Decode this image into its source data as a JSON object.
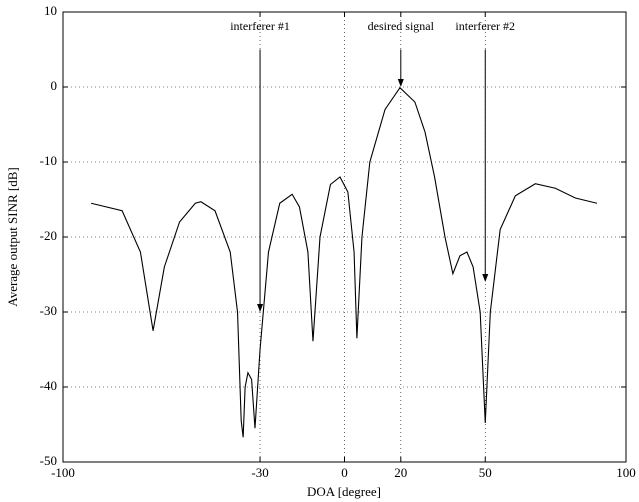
{
  "chart_data": {
    "type": "line",
    "xlabel": "DOA [degree]",
    "ylabel": "Average output SINR [dB]",
    "xlim": [
      -100,
      100
    ],
    "xticks": [
      -100,
      -30,
      0,
      20,
      50,
      100
    ],
    "ylim": [
      -50,
      10
    ],
    "yticks": [
      -50,
      -40,
      -30,
      -20,
      -10,
      0,
      10
    ],
    "grid": true,
    "x": [
      -90,
      -79,
      -72.5,
      -68,
      -64,
      -58.6,
      -53,
      -51,
      -46,
      -40.6,
      -38,
      -36.7,
      -36,
      -35.3,
      -34.3,
      -33,
      -31.8,
      -30,
      -27,
      -23,
      -18.6,
      -16,
      -13,
      -11.2,
      -8.7,
      -5,
      -1.6,
      1.2,
      3.4,
      4.4,
      6.2,
      9,
      14.4,
      19.7,
      25,
      28.6,
      32,
      35.7,
      38.5,
      41,
      43.5,
      45.7,
      48.2,
      50,
      51.8,
      55.3,
      60.7,
      67.8,
      74.9,
      82,
      89.7
    ],
    "series": [
      {
        "color": "#000000",
        "values": [
          -15.5,
          -16.5,
          -22,
          -32.5,
          -24,
          -18,
          -15.5,
          -15.3,
          -16.5,
          -22,
          -30,
          -44.5,
          -46.7,
          -40,
          -38.1,
          -39,
          -45.5,
          -35,
          -22,
          -15.5,
          -14.3,
          -16,
          -22,
          -33.9,
          -20,
          -13,
          -12,
          -14,
          -22,
          -33.5,
          -20,
          -10,
          -3,
          -0.1,
          -2,
          -6,
          -12,
          -20,
          -24.9,
          -22.5,
          -22,
          -24,
          -30,
          -44.8,
          -30,
          -19,
          -14.5,
          -12.9,
          -13.5,
          -14.8,
          -15.5
        ]
      }
    ],
    "annotations": [
      {
        "text": "interferer #1",
        "xy": [
          -30,
          -30
        ],
        "xytext": [
          -30,
          5
        ],
        "text_y": 8
      },
      {
        "text": "desired signal",
        "xy": [
          20,
          0
        ],
        "xytext": [
          20,
          5
        ],
        "text_y": 8
      },
      {
        "text": "interferer #2",
        "xy": [
          50,
          -26
        ],
        "xytext": [
          50,
          5
        ],
        "text_y": 8
      }
    ]
  }
}
